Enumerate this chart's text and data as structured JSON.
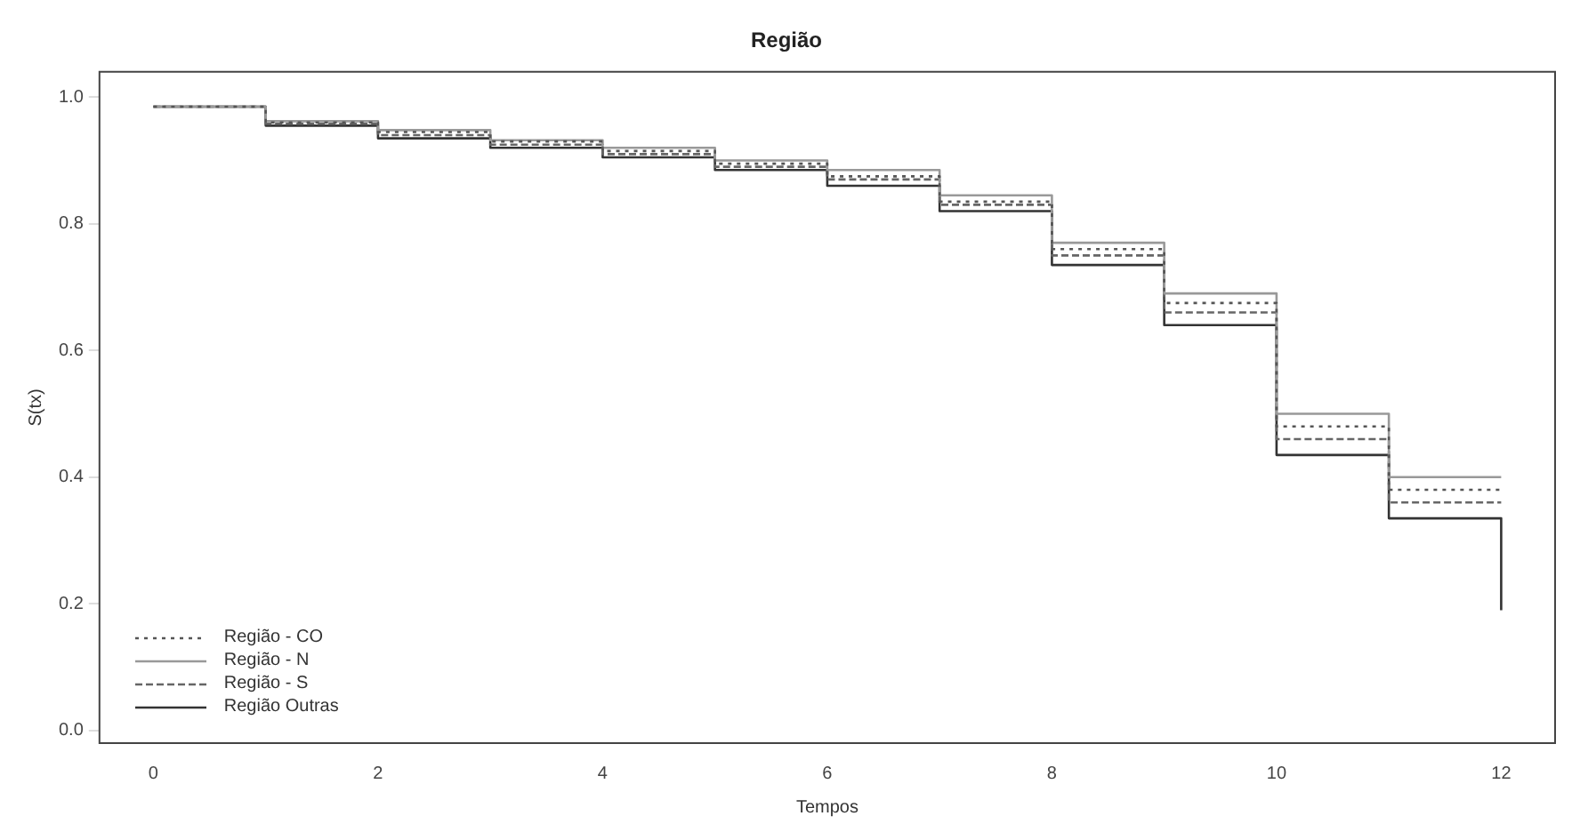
{
  "chart_data": {
    "type": "step",
    "title": "Região",
    "xlabel": "Tempos",
    "ylabel": "S(tx)",
    "xlim": [
      -0.48,
      12.48
    ],
    "xticks": [
      0,
      2,
      4,
      6,
      8,
      10,
      12
    ],
    "ylim": [
      -0.02,
      1.04
    ],
    "yticks": [
      {
        "value": 0,
        "label": "0.0"
      },
      {
        "value": 0.2,
        "label": "0.2"
      },
      {
        "value": 0.4,
        "label": "0.4"
      },
      {
        "value": 0.6,
        "label": "0.6"
      },
      {
        "value": 0.8,
        "label": "0.8"
      },
      {
        "value": 1,
        "label": "1.0"
      }
    ],
    "grid": false,
    "legend": "bottom left",
    "marker": "none",
    "series": [
      {
        "name": "Região - CO",
        "color": "#555555",
        "line_style": "dotted",
        "x": [
          0,
          1,
          2,
          3,
          4,
          5,
          6,
          7,
          8,
          9,
          10,
          11,
          12
        ],
        "values": [
          0.985,
          0.96,
          0.945,
          0.93,
          0.915,
          0.895,
          0.875,
          0.835,
          0.76,
          0.675,
          0.48,
          0.38,
          0.38
        ]
      },
      {
        "name": "Região - N",
        "color": "#999999",
        "line_style": "solid",
        "x": [
          0,
          1,
          2,
          3,
          4,
          5,
          6,
          7,
          8,
          9,
          10,
          11,
          12
        ],
        "values": [
          0.985,
          0.962,
          0.948,
          0.932,
          0.92,
          0.9,
          0.885,
          0.845,
          0.77,
          0.69,
          0.5,
          0.4,
          0.4
        ]
      },
      {
        "name": "Região - S",
        "color": "#666666",
        "line_style": "dashed",
        "x": [
          0,
          1,
          2,
          3,
          4,
          5,
          6,
          7,
          8,
          9,
          10,
          11,
          12
        ],
        "values": [
          0.985,
          0.958,
          0.94,
          0.925,
          0.91,
          0.89,
          0.87,
          0.83,
          0.75,
          0.66,
          0.46,
          0.36,
          0.36
        ]
      },
      {
        "name": "Região Outras",
        "color": "#333333",
        "line_style": "solid",
        "x": [
          0,
          1,
          2,
          3,
          4,
          5,
          6,
          7,
          8,
          9,
          10,
          11,
          12
        ],
        "values": [
          0.985,
          0.955,
          0.935,
          0.92,
          0.905,
          0.885,
          0.86,
          0.82,
          0.735,
          0.64,
          0.435,
          0.335,
          0.19
        ]
      }
    ]
  }
}
